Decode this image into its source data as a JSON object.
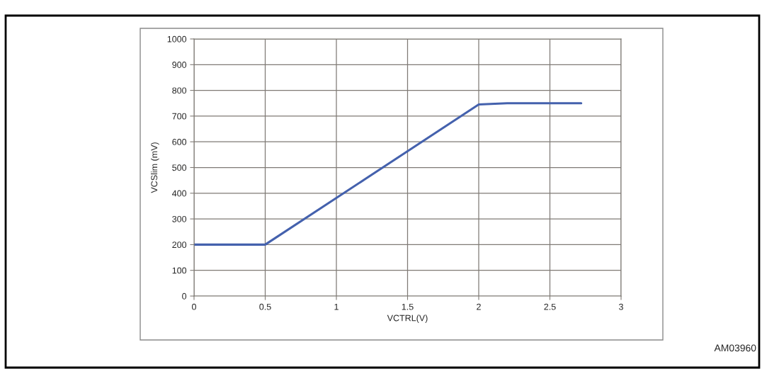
{
  "chart_data": {
    "type": "line",
    "xlabel": "VCTRL(V)",
    "ylabel": "VCSlim (mV)",
    "x": [
      0,
      0.5,
      2,
      2.2,
      2.72
    ],
    "series": [
      {
        "color": "#4461ad",
        "values": [
          200,
          200,
          745,
          750,
          750
        ]
      }
    ],
    "xlim": [
      0,
      3
    ],
    "xticks": [
      0,
      {
        "value": 0.5,
        "label": "0.5"
      },
      1,
      {
        "value": 1.5,
        "label": "1.5"
      },
      2,
      {
        "value": 2.5,
        "label": "2.5"
      },
      3
    ],
    "ylim": [
      0,
      1000
    ],
    "yticks": [
      0,
      100,
      200,
      300,
      400,
      500,
      600,
      700,
      800,
      900,
      1000
    ],
    "grid": true,
    "marker": "none",
    "line_style": "solid",
    "legend": false,
    "annotations": [
      "AM03960"
    ]
  }
}
